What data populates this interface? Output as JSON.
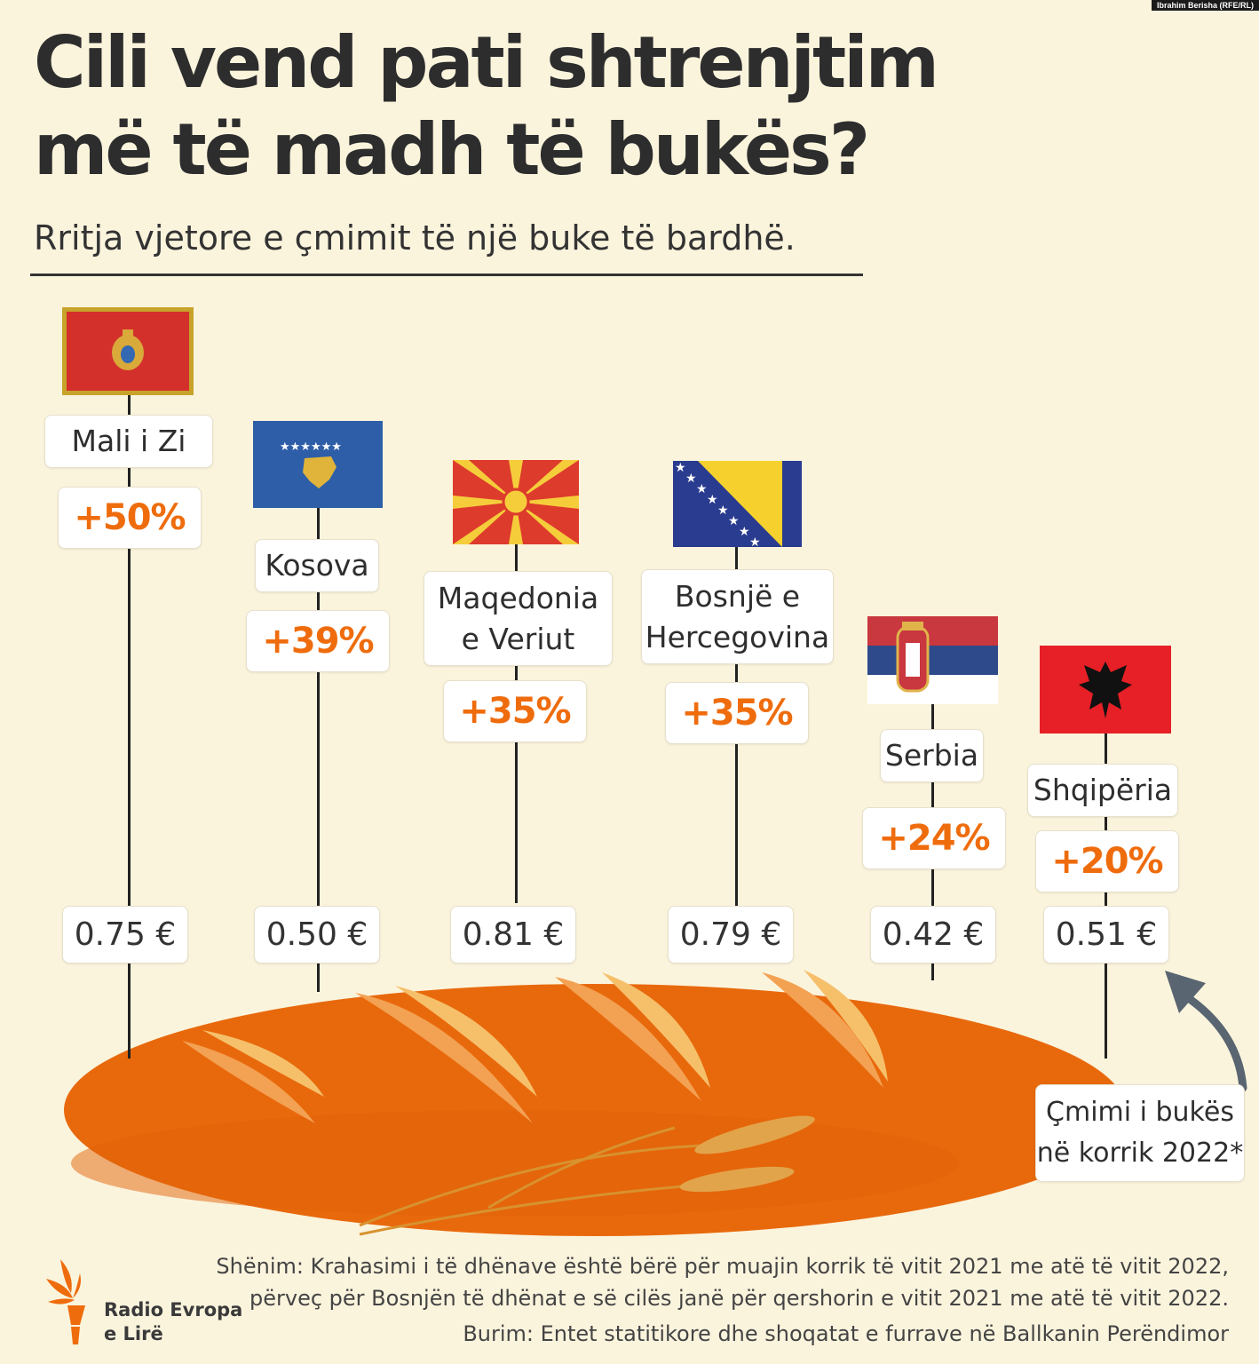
{
  "credit": "Ibrahim Berisha (RFE/RL)",
  "title_line1": "Cili vend pati shtrenjtim",
  "title_line2": "më të madh të bukës?",
  "subtitle": "Rritja vjetore e çmimit të një buke të bardhë.",
  "chart_data": {
    "type": "bar",
    "title": "Cili vend pati shtrenjtim më të madh të bukës?",
    "subtitle": "Rritja vjetore e çmimit të një buke të bardhë.",
    "categories": [
      "Mali i Zi",
      "Kosova",
      "Maqedonia e Veriut",
      "Bosnjë e Hercegovina",
      "Serbia",
      "Shqipëria"
    ],
    "series": [
      {
        "name": "",
        "values": [
          50,
          39,
          35,
          35,
          24,
          20
        ],
        "labels": [
          "+50%",
          "+39%",
          "+35%",
          "+35%",
          "+24%",
          "+20%"
        ]
      },
      {
        "name": "Çmimi i bukës në korrik 2022*",
        "values": [
          0.75,
          0.5,
          0.81,
          0.79,
          0.42,
          0.51
        ],
        "labels": [
          "0.75 €",
          "0.50 €",
          "0.81 €",
          "0.79 €",
          "0.42 €",
          "0.51 €"
        ]
      }
    ],
    "flags": [
      "montenegro-flag",
      "kosovo-flag",
      "north-macedonia-flag",
      "bosnia-flag",
      "serbia-flag",
      "albania-flag"
    ],
    "colors": {
      "accent": "#ef6c0d",
      "bread": "#e8690c",
      "background": "#fbf4dd"
    }
  },
  "countries": [
    {
      "name_l1": "Mali i Zi",
      "name_l2": "",
      "pct": "+50%",
      "price": "0.75 €"
    },
    {
      "name_l1": "Kosova",
      "name_l2": "",
      "pct": "+39%",
      "price": "0.50 €"
    },
    {
      "name_l1": "Maqedonia",
      "name_l2": "e Veriut",
      "pct": "+35%",
      "price": "0.81 €"
    },
    {
      "name_l1": "Bosnjë e",
      "name_l2": "Hercegovina",
      "pct": "+35%",
      "price": "0.79 €"
    },
    {
      "name_l1": "Serbia",
      "name_l2": "",
      "pct": "+24%",
      "price": "0.42 €"
    },
    {
      "name_l1": "Shqipëria",
      "name_l2": "",
      "pct": "+20%",
      "price": "0.51 €"
    }
  ],
  "callout_l1": "Çmimi i bukës",
  "callout_l2": "në korrik 2022*",
  "note_l1": "Shënim: Krahasimi i të dhënave është bërë për muajin korrik të vitit 2021 me atë të vitit 2022,",
  "note_l2": "përveç për Bosnjën të dhënat e së cilës janë për qershorin e vitit 2021 me atë të vitit 2022.",
  "source": "Burim: Entet statitikore dhe shoqatat e furrave në Ballkanin Perëndimor",
  "logo_l1": "Radio Evropa",
  "logo_l2": "e Lirë"
}
